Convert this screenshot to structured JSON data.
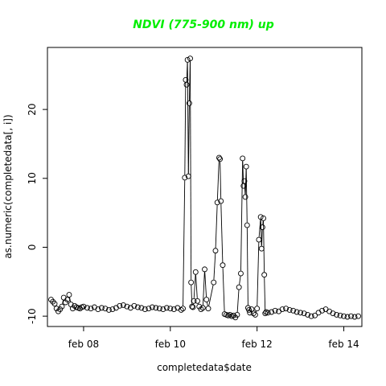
{
  "colors": {
    "title": "#00ee00",
    "series": "#000000",
    "background": "#ffffff"
  },
  "chart_data": {
    "type": "line",
    "marker": "open-circle",
    "title": "NDVI (775-900 nm) up",
    "xlabel": "completedata$date",
    "ylabel": "as.numeric(completedata[, i])",
    "xlim": [
      "2016-02-07 04:00",
      "2016-02-14 10:00"
    ],
    "ylim": [
      -11.5,
      29
    ],
    "x_ticks": [
      {
        "x": "2016-02-08",
        "label": "feb 08"
      },
      {
        "x": "2016-02-10",
        "label": "feb 10"
      },
      {
        "x": "2016-02-12",
        "label": "feb 12"
      },
      {
        "x": "2016-02-14",
        "label": "feb 14"
      }
    ],
    "y_ticks": [
      -10,
      0,
      10,
      20
    ],
    "grid": false,
    "legend": "none",
    "series": [
      {
        "x": [
          "2016-02-07 06:00",
          "2016-02-07 07:00",
          "2016-02-07 08:00",
          "2016-02-07 09:00",
          "2016-02-07 10:00",
          "2016-02-07 11:00",
          "2016-02-07 12:00",
          "2016-02-07 13:00",
          "2016-02-07 14:00",
          "2016-02-07 15:00",
          "2016-02-07 16:00",
          "2016-02-07 17:00",
          "2016-02-07 18:00",
          "2016-02-07 19:00",
          "2016-02-07 20:00",
          "2016-02-07 21:00",
          "2016-02-07 22:00",
          "2016-02-07 23:00",
          "2016-02-08 00:00",
          "2016-02-08 02:00",
          "2016-02-08 04:00",
          "2016-02-08 06:00",
          "2016-02-08 08:00",
          "2016-02-08 10:00",
          "2016-02-08 12:00",
          "2016-02-08 14:00",
          "2016-02-08 16:00",
          "2016-02-08 18:00",
          "2016-02-08 20:00",
          "2016-02-08 22:00",
          "2016-02-09 00:00",
          "2016-02-09 02:00",
          "2016-02-09 04:00",
          "2016-02-09 06:00",
          "2016-02-09 08:00",
          "2016-02-09 10:00",
          "2016-02-09 12:00",
          "2016-02-09 14:00",
          "2016-02-09 16:00",
          "2016-02-09 18:00",
          "2016-02-09 20:00",
          "2016-02-09 22:00",
          "2016-02-10 00:00",
          "2016-02-10 02:00",
          "2016-02-10 04:00",
          "2016-02-10 06:00",
          "2016-02-10 07:00",
          "2016-02-10 08:00",
          "2016-02-10 08:30",
          "2016-02-10 09:00",
          "2016-02-10 09:30",
          "2016-02-10 10:00",
          "2016-02-10 10:30",
          "2016-02-10 11:00",
          "2016-02-10 11:30",
          "2016-02-10 12:00",
          "2016-02-10 12:30",
          "2016-02-10 13:00",
          "2016-02-10 14:00",
          "2016-02-10 15:00",
          "2016-02-10 16:00",
          "2016-02-10 17:00",
          "2016-02-10 18:00",
          "2016-02-10 19:00",
          "2016-02-10 20:00",
          "2016-02-10 21:00",
          "2016-02-11 00:00",
          "2016-02-11 01:00",
          "2016-02-11 02:00",
          "2016-02-11 03:00",
          "2016-02-11 03:30",
          "2016-02-11 04:00",
          "2016-02-11 05:00",
          "2016-02-11 06:00",
          "2016-02-11 07:00",
          "2016-02-11 08:00",
          "2016-02-11 09:00",
          "2016-02-11 10:00",
          "2016-02-11 11:00",
          "2016-02-11 12:00",
          "2016-02-11 13:00",
          "2016-02-11 14:00",
          "2016-02-11 15:00",
          "2016-02-11 16:00",
          "2016-02-11 16:30",
          "2016-02-11 17:00",
          "2016-02-11 17:30",
          "2016-02-11 18:00",
          "2016-02-11 18:30",
          "2016-02-11 19:00",
          "2016-02-11 19:30",
          "2016-02-11 20:00",
          "2016-02-11 21:00",
          "2016-02-11 22:00",
          "2016-02-11 23:00",
          "2016-02-12 00:00",
          "2016-02-12 01:00",
          "2016-02-12 02:00",
          "2016-02-12 02:30",
          "2016-02-12 03:00",
          "2016-02-12 03:30",
          "2016-02-12 04:00",
          "2016-02-12 04:30",
          "2016-02-12 05:00",
          "2016-02-12 06:00",
          "2016-02-12 08:00",
          "2016-02-12 10:00",
          "2016-02-12 12:00",
          "2016-02-12 14:00",
          "2016-02-12 16:00",
          "2016-02-12 18:00",
          "2016-02-12 20:00",
          "2016-02-12 22:00",
          "2016-02-13 00:00",
          "2016-02-13 02:00",
          "2016-02-13 04:00",
          "2016-02-13 06:00",
          "2016-02-13 08:00",
          "2016-02-13 10:00",
          "2016-02-13 12:00",
          "2016-02-13 14:00",
          "2016-02-13 16:00",
          "2016-02-13 18:00",
          "2016-02-13 20:00",
          "2016-02-13 22:00",
          "2016-02-14 00:00",
          "2016-02-14 02:00",
          "2016-02-14 04:00",
          "2016-02-14 06:00",
          "2016-02-14 08:00"
        ],
        "y": [
          -7.6,
          -7.9,
          -8.2,
          -8.9,
          -9.3,
          -9.0,
          -8.6,
          -7.3,
          -8.0,
          -7.6,
          -6.9,
          -8.3,
          -8.9,
          -8.5,
          -8.7,
          -8.8,
          -8.9,
          -8.7,
          -8.6,
          -8.8,
          -8.9,
          -8.7,
          -9.0,
          -8.8,
          -8.9,
          -9.1,
          -9.0,
          -8.8,
          -8.5,
          -8.4,
          -8.6,
          -8.8,
          -8.5,
          -8.7,
          -8.8,
          -9.0,
          -8.9,
          -8.7,
          -8.8,
          -8.9,
          -9.0,
          -8.8,
          -8.9,
          -9.0,
          -8.8,
          -9.1,
          -8.9,
          10.1,
          24.3,
          23.6,
          27.2,
          10.3,
          20.9,
          27.4,
          -5.1,
          -8.6,
          -8.7,
          -7.8,
          -3.6,
          -7.8,
          -8.6,
          -9.0,
          -8.8,
          -3.2,
          -7.6,
          -8.9,
          -5.1,
          -0.5,
          6.5,
          13.0,
          12.8,
          6.7,
          -2.6,
          -9.7,
          -9.8,
          -9.9,
          -9.8,
          -10.0,
          -9.9,
          -10.2,
          -9.8,
          -5.8,
          -3.8,
          12.9,
          8.9,
          9.6,
          7.3,
          11.7,
          3.2,
          -8.8,
          -9.1,
          -9.5,
          -9.0,
          -9.6,
          -9.8,
          -8.9,
          1.1,
          4.4,
          -0.2,
          2.9,
          4.2,
          -4.0,
          -9.6,
          -9.4,
          -9.5,
          -9.4,
          -9.2,
          -9.3,
          -9.0,
          -8.9,
          -9.1,
          -9.2,
          -9.4,
          -9.5,
          -9.6,
          -9.8,
          -10.0,
          -9.9,
          -9.5,
          -9.2,
          -9.0,
          -9.3,
          -9.6,
          -9.8,
          -9.9,
          -10.0,
          -10.1,
          -10.0,
          -10.1,
          -10.0
        ]
      }
    ]
  }
}
